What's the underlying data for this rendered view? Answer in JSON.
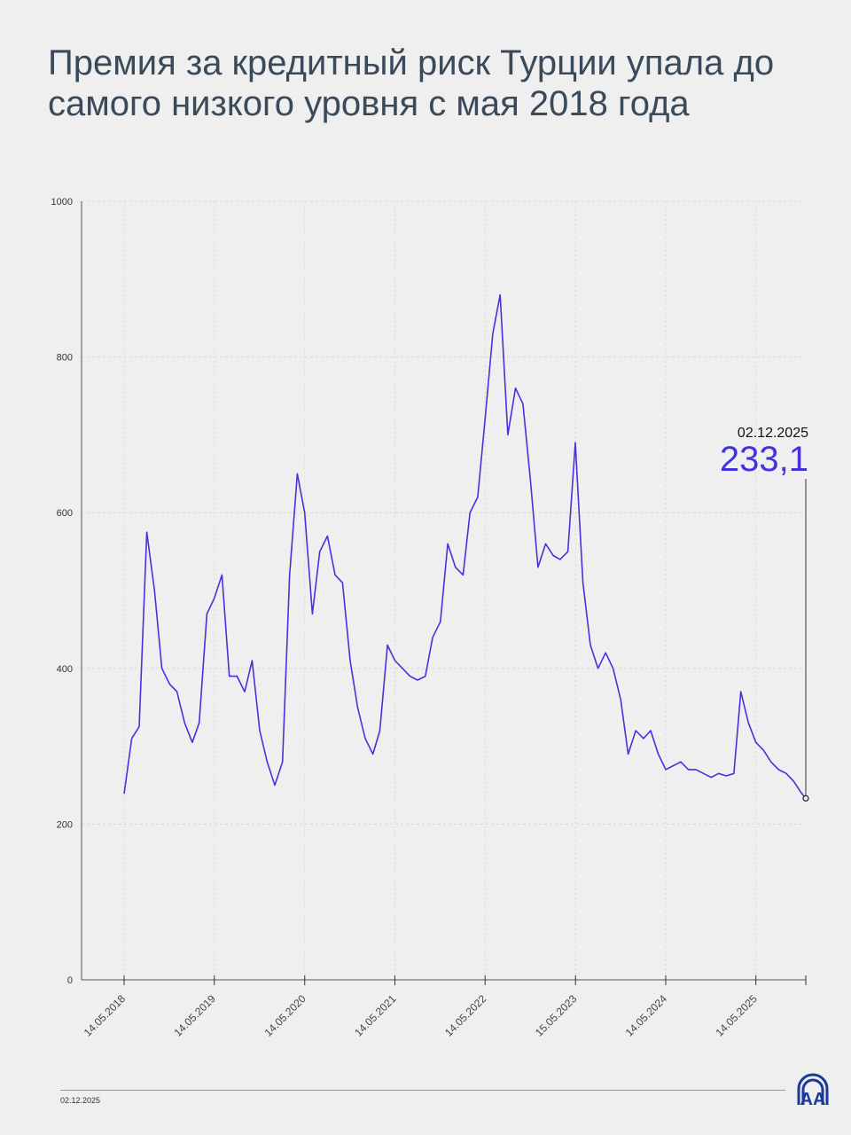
{
  "title": "Премия за кредитный риск Турции упала до самого низкого уровня с мая 2018 года",
  "footer": {
    "date": "02.12.2025",
    "logo": "AA"
  },
  "annotation": {
    "date": "02.12.2025",
    "value": "233,1"
  },
  "colors": {
    "line": "#4433dd",
    "text": "#3a4a5a",
    "background": "#efefef"
  },
  "chart_data": {
    "type": "line",
    "title": "",
    "xlabel": "",
    "ylabel": "",
    "ylim": [
      0,
      1000
    ],
    "yticks": [
      0,
      200,
      400,
      600,
      800,
      1000
    ],
    "xtick_labels": [
      {
        "date": "2018-05-14",
        "label": "14.05.2018"
      },
      {
        "date": "2019-05-14",
        "label": "14.05.2019"
      },
      {
        "date": "2020-05-14",
        "label": "14.05.2020"
      },
      {
        "date": "2021-05-14",
        "label": "14.05.2021"
      },
      {
        "date": "2022-05-14",
        "label": "14.05.2022"
      },
      {
        "date": "2023-05-15",
        "label": "15.05.2023"
      },
      {
        "date": "2024-05-14",
        "label": "14.05.2024"
      },
      {
        "date": "2025-05-14",
        "label": "14.05.2025"
      }
    ],
    "xlim": [
      "2018-05-14",
      "2025-12-02"
    ],
    "grid": true,
    "series": [
      {
        "x": [
          "2018-05-14",
          "2018-06-14",
          "2018-07-14",
          "2018-08-14",
          "2018-09-14",
          "2018-10-14",
          "2018-11-14",
          "2018-12-14",
          "2019-01-14",
          "2019-02-14",
          "2019-03-14",
          "2019-04-14",
          "2019-05-14",
          "2019-06-14",
          "2019-07-14",
          "2019-08-14",
          "2019-09-14",
          "2019-10-14",
          "2019-11-14",
          "2019-12-14",
          "2020-01-14",
          "2020-02-14",
          "2020-03-14",
          "2020-04-14",
          "2020-05-14",
          "2020-06-14",
          "2020-07-14",
          "2020-08-14",
          "2020-09-14",
          "2020-10-14",
          "2020-11-14",
          "2020-12-14",
          "2021-01-14",
          "2021-02-14",
          "2021-03-14",
          "2021-04-14",
          "2021-05-14",
          "2021-06-14",
          "2021-07-14",
          "2021-08-14",
          "2021-09-14",
          "2021-10-14",
          "2021-11-14",
          "2021-12-14",
          "2022-01-14",
          "2022-02-14",
          "2022-03-14",
          "2022-04-14",
          "2022-05-14",
          "2022-06-14",
          "2022-07-14",
          "2022-08-14",
          "2022-09-14",
          "2022-10-14",
          "2022-11-14",
          "2022-12-14",
          "2023-01-14",
          "2023-02-14",
          "2023-03-14",
          "2023-04-14",
          "2023-05-14",
          "2023-06-14",
          "2023-07-14",
          "2023-08-14",
          "2023-09-14",
          "2023-10-14",
          "2023-11-14",
          "2023-12-14",
          "2024-01-14",
          "2024-02-14",
          "2024-03-14",
          "2024-04-14",
          "2024-05-14",
          "2024-06-14",
          "2024-07-14",
          "2024-08-14",
          "2024-09-14",
          "2024-10-14",
          "2024-11-14",
          "2024-12-14",
          "2025-01-14",
          "2025-02-14",
          "2025-03-14",
          "2025-04-14",
          "2025-05-14",
          "2025-06-14",
          "2025-07-14",
          "2025-08-14",
          "2025-09-14",
          "2025-10-14",
          "2025-11-14",
          "2025-12-02"
        ],
        "y": [
          239,
          310,
          325,
          575,
          500,
          400,
          380,
          370,
          330,
          305,
          330,
          470,
          490,
          520,
          390,
          390,
          370,
          410,
          320,
          280,
          250,
          280,
          520,
          650,
          600,
          470,
          550,
          570,
          520,
          510,
          410,
          350,
          310,
          290,
          320,
          430,
          410,
          400,
          390,
          385,
          390,
          440,
          460,
          560,
          530,
          520,
          600,
          620,
          720,
          830,
          880,
          700,
          760,
          740,
          640,
          530,
          560,
          545,
          540,
          550,
          690,
          510,
          430,
          400,
          420,
          400,
          360,
          290,
          320,
          310,
          320,
          290,
          270,
          275,
          280,
          270,
          270,
          265,
          260,
          265,
          262,
          265,
          370,
          330,
          305,
          295,
          280,
          270,
          265,
          255,
          240,
          233.1
        ]
      }
    ]
  }
}
